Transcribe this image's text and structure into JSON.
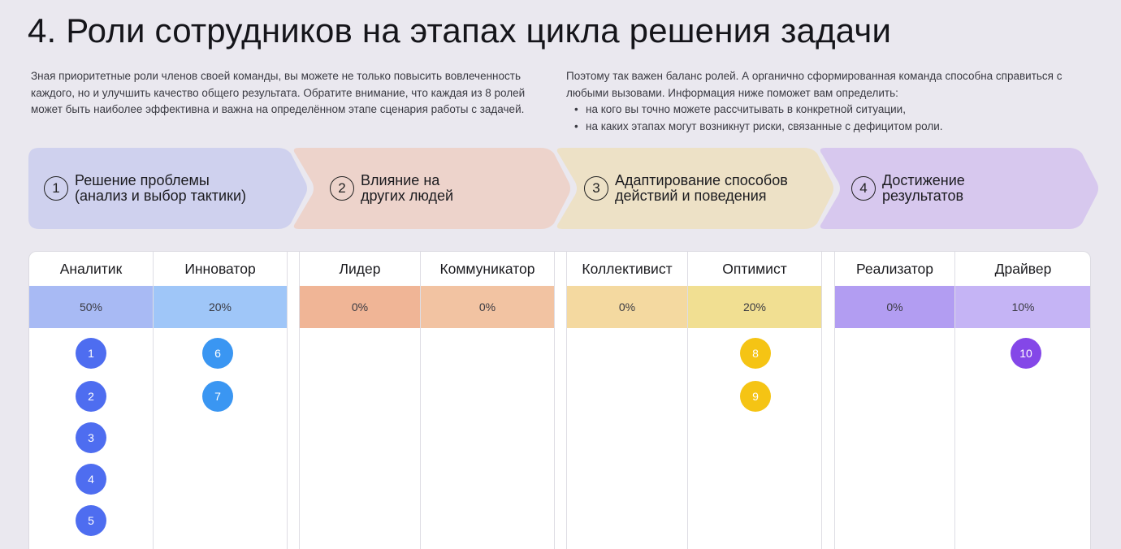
{
  "title": "4. Роли сотрудников на этапах цикла решения задачи",
  "intro_left": "Зная приоритетные роли членов своей команды, вы можете не только повысить вовлеченность каждого, но и улучшить качество общего результата. Обратите внимание, что каждая из 8 ролей может быть наиболее эффективна и важна на определённом этапе сценария работы с задачей.",
  "intro_right": {
    "text": "Поэтому так важен баланс ролей. А органично сформированная команда способна справиться с любыми вызовами. Информация ниже поможет вам определить:",
    "bullets": [
      "на кого вы точно можете рассчитывать в конкретной ситуации,",
      "на каких этапах могут возникнут риски, связанные с дефицитом роли."
    ]
  },
  "stages": [
    {
      "num": "1",
      "label": "Решение проблемы\n(анализ и выбор тактики)",
      "color": "#cfd1ee"
    },
    {
      "num": "2",
      "label": "Влияние на\nдругих людей",
      "color": "#edd3cb"
    },
    {
      "num": "3",
      "label": "Адаптирование способов\nдействий и поведения",
      "color": "#ede1c6"
    },
    {
      "num": "4",
      "label": "Достижение\nрезультатов",
      "color": "#d7c8ee"
    }
  ],
  "roles": [
    {
      "name": "Аналитик",
      "pct": "50%",
      "color": "#a8baf4",
      "dots": [
        "1",
        "2",
        "3",
        "4",
        "5"
      ],
      "dot_color": "#4e6df0"
    },
    {
      "name": "Инноватор",
      "pct": "20%",
      "color": "#9fc6f8",
      "dots": [
        "6",
        "7"
      ],
      "dot_color": "#3a96f2"
    },
    {
      "name": "Лидер",
      "pct": "0%",
      "color": "#f0b596",
      "dots": [],
      "dot_color": "#f08a5a"
    },
    {
      "name": "Коммуникатор",
      "pct": "0%",
      "color": "#f2c3a2",
      "dots": [],
      "dot_color": "#f08a5a"
    },
    {
      "name": "Коллективист",
      "pct": "0%",
      "color": "#f4d9a0",
      "dots": [],
      "dot_color": "#f3c21a"
    },
    {
      "name": "Оптимист",
      "pct": "20%",
      "color": "#f1df92",
      "dots": [
        "8",
        "9"
      ],
      "dot_color": "#f5c414"
    },
    {
      "name": "Реализатор",
      "pct": "0%",
      "color": "#b29df2",
      "dots": [],
      "dot_color": "#8a52ee"
    },
    {
      "name": "Драйвер",
      "pct": "10%",
      "color": "#c5b4f5",
      "dots": [
        "10"
      ],
      "dot_color": "#8447e8"
    }
  ]
}
